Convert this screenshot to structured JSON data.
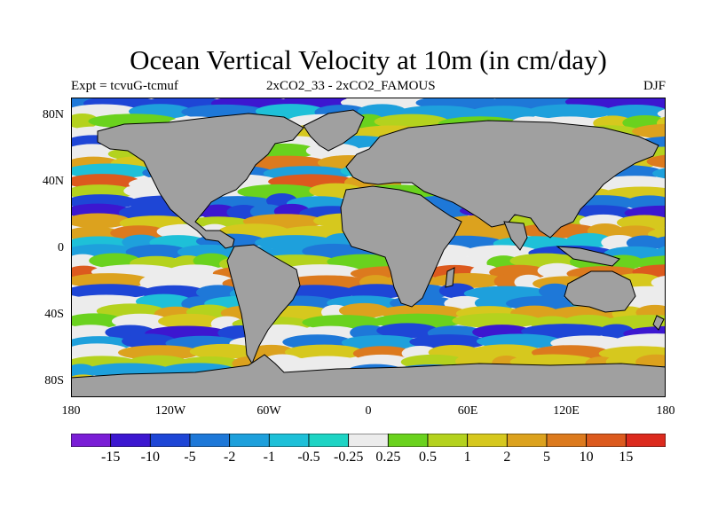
{
  "title": "Ocean Vertical Velocity at 10m (in cm/day)",
  "subtitle_left": "Expt = tcvuG-tcmuf",
  "subtitle_center": "2xCO2_33 - 2xCO2_FAMOUS",
  "subtitle_right": "DJF",
  "lat_labels": [
    "80N",
    "40N",
    "0",
    "40S",
    "80S"
  ],
  "lon_labels": [
    "180",
    "120W",
    "60W",
    "0",
    "60E",
    "120E",
    "180"
  ],
  "colorbar": {
    "labels": [
      "-15",
      "-10",
      "-5",
      "-2",
      "-1",
      "-0.5",
      "-0.25",
      "0.25",
      "0.5",
      "1",
      "2",
      "5",
      "10",
      "15"
    ],
    "colors": [
      "#7a1ed6",
      "#3c17d0",
      "#1e46d6",
      "#1e78d8",
      "#1ea0dc",
      "#1ec0d8",
      "#1ed4c4",
      "#ececec",
      "#6ad21e",
      "#b4d21e",
      "#d6c81e",
      "#dca21e",
      "#dc7a1e",
      "#dc5a1e",
      "#dc2a1e"
    ]
  },
  "map": {
    "ocean_color": "#f0f0f0",
    "land_color": "#a0a0a0",
    "coast_color": "#000000"
  }
}
